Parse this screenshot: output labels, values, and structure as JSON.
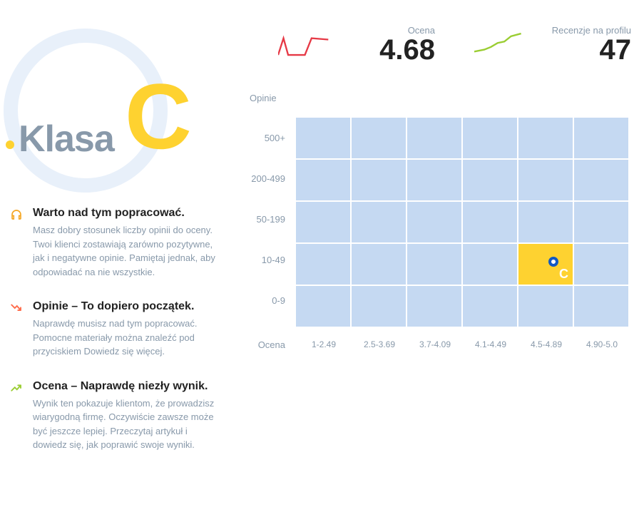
{
  "badge": {
    "label": "Klasa",
    "grade": "C",
    "grade_color": "#fed230",
    "label_color": "#8899aa",
    "ring_color": "#e8f0fa"
  },
  "tips": [
    {
      "icon": "headphones",
      "icon_color": "#f5a623",
      "title": "Warto nad tym popracować.",
      "desc": "Masz dobry stosunek liczby opinii do oceny. Twoi klienci zostawiają zarówno pozytywne, jak i negatywne opinie. Pamiętaj jednak, aby odpowiadać na nie wszystkie."
    },
    {
      "icon": "trend-down",
      "icon_color": "#ff6b4a",
      "title": "Opinie – To dopiero początek.",
      "desc": "Naprawdę musisz nad tym popracować. Pomocne materiały można znaleźć pod przyciskiem Dowiedz się więcej."
    },
    {
      "icon": "trend-up",
      "icon_color": "#9acd32",
      "title": "Ocena – Naprawdę niezły wynik.",
      "desc": "Wynik ten pokazuje klientom, że prowadzisz wiarygodną firmę. Oczywiście zawsze może być jeszcze lepiej. Przeczytaj artykuł i dowiedz się, jak poprawić swoje wyniki."
    }
  ],
  "stats": {
    "ocena": {
      "label": "Ocena",
      "value": "4.68",
      "line_color": "#e63946",
      "points": [
        0,
        40,
        8,
        15,
        15,
        40,
        40,
        40,
        50,
        15,
        75,
        17
      ]
    },
    "recenzje": {
      "label": "Recenzje na profilu",
      "value": "47",
      "line_color": "#9acd32",
      "points": [
        0,
        35,
        15,
        32,
        25,
        28,
        35,
        22,
        45,
        20,
        55,
        12,
        70,
        8
      ]
    }
  },
  "chart": {
    "y_title": "Opinie",
    "x_title": "Ocena",
    "y_labels": [
      "500+",
      "200-499",
      "50-199",
      "10-49",
      "0-9"
    ],
    "x_labels": [
      "1-2.49",
      "2.5-3.69",
      "3.7-4.09",
      "4.1-4.49",
      "4.5-4.89",
      "4.90-5.0"
    ],
    "cell_color": "#c5d9f2",
    "active_cell_color": "#fed230",
    "marker_color": "#1259c3",
    "rows": 5,
    "cols": 6,
    "active": {
      "row": 3,
      "col": 4,
      "label": "C"
    }
  }
}
